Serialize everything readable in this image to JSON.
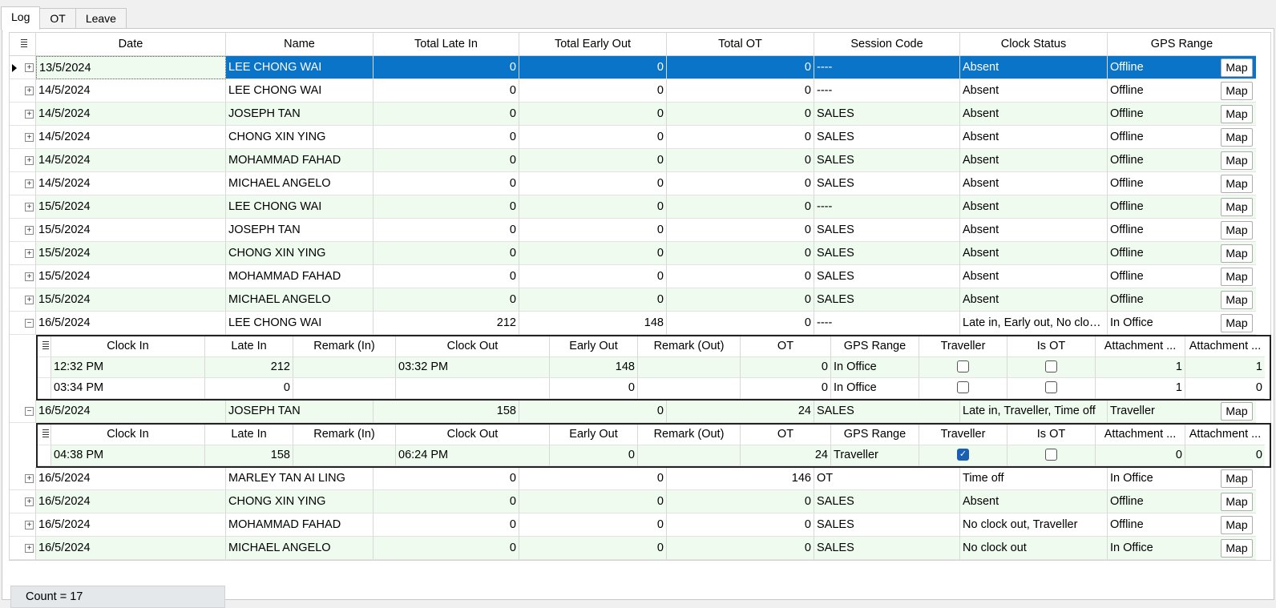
{
  "tabs": [
    "Log",
    "OT",
    "Leave"
  ],
  "columns": [
    "Date",
    "Name",
    "Total Late In",
    "Total Early Out",
    "Total OT",
    "Session Code",
    "Clock Status",
    "GPS Range"
  ],
  "map_label": "Map",
  "rows": [
    {
      "date": "13/5/2024",
      "name": "LEE CHONG WAI",
      "late": "0",
      "early": "0",
      "ot": "0",
      "session": "----",
      "status": "Absent",
      "gps": "Offline"
    },
    {
      "date": "14/5/2024",
      "name": "LEE CHONG WAI",
      "late": "0",
      "early": "0",
      "ot": "0",
      "session": "----",
      "status": "Absent",
      "gps": "Offline"
    },
    {
      "date": "14/5/2024",
      "name": "JOSEPH TAN",
      "late": "0",
      "early": "0",
      "ot": "0",
      "session": "SALES",
      "status": "Absent",
      "gps": "Offline"
    },
    {
      "date": "14/5/2024",
      "name": "CHONG XIN YING",
      "late": "0",
      "early": "0",
      "ot": "0",
      "session": "SALES",
      "status": "Absent",
      "gps": "Offline"
    },
    {
      "date": "14/5/2024",
      "name": "MOHAMMAD FAHAD",
      "late": "0",
      "early": "0",
      "ot": "0",
      "session": "SALES",
      "status": "Absent",
      "gps": "Offline"
    },
    {
      "date": "14/5/2024",
      "name": "MICHAEL ANGELO",
      "late": "0",
      "early": "0",
      "ot": "0",
      "session": "SALES",
      "status": "Absent",
      "gps": "Offline"
    },
    {
      "date": "15/5/2024",
      "name": "LEE CHONG WAI",
      "late": "0",
      "early": "0",
      "ot": "0",
      "session": "----",
      "status": "Absent",
      "gps": "Offline"
    },
    {
      "date": "15/5/2024",
      "name": "JOSEPH TAN",
      "late": "0",
      "early": "0",
      "ot": "0",
      "session": "SALES",
      "status": "Absent",
      "gps": "Offline"
    },
    {
      "date": "15/5/2024",
      "name": "CHONG XIN YING",
      "late": "0",
      "early": "0",
      "ot": "0",
      "session": "SALES",
      "status": "Absent",
      "gps": "Offline"
    },
    {
      "date": "15/5/2024",
      "name": "MOHAMMAD FAHAD",
      "late": "0",
      "early": "0",
      "ot": "0",
      "session": "SALES",
      "status": "Absent",
      "gps": "Offline"
    },
    {
      "date": "15/5/2024",
      "name": "MICHAEL ANGELO",
      "late": "0",
      "early": "0",
      "ot": "0",
      "session": "SALES",
      "status": "Absent",
      "gps": "Offline"
    },
    {
      "date": "16/5/2024",
      "name": "LEE CHONG WAI",
      "late": "212",
      "early": "148",
      "ot": "0",
      "session": "----",
      "status": "Late in, Early out, No cloc...",
      "gps": "In Office"
    },
    {
      "date": "16/5/2024",
      "name": "JOSEPH TAN",
      "late": "158",
      "early": "0",
      "ot": "24",
      "session": "SALES",
      "status": "Late in, Traveller, Time off",
      "gps": "Traveller"
    },
    {
      "date": "16/5/2024",
      "name": "MARLEY TAN AI LING",
      "late": "0",
      "early": "0",
      "ot": "146",
      "session": "OT",
      "status": "Time off",
      "gps": "In Office"
    },
    {
      "date": "16/5/2024",
      "name": "CHONG XIN YING",
      "late": "0",
      "early": "0",
      "ot": "0",
      "session": "SALES",
      "status": "Absent",
      "gps": "Offline"
    },
    {
      "date": "16/5/2024",
      "name": "MOHAMMAD FAHAD",
      "late": "0",
      "early": "0",
      "ot": "0",
      "session": "SALES",
      "status": "No clock out, Traveller",
      "gps": "Offline"
    },
    {
      "date": "16/5/2024",
      "name": "MICHAEL ANGELO",
      "late": "0",
      "early": "0",
      "ot": "0",
      "session": "SALES",
      "status": "No clock out",
      "gps": "In Office"
    }
  ],
  "detail_columns": [
    "Clock In",
    "Late In",
    "Remark (In)",
    "Clock Out",
    "Early Out",
    "Remark (Out)",
    "OT",
    "GPS Range",
    "Traveller",
    "Is OT",
    "Attachment ...",
    "Attachment ..."
  ],
  "details": {
    "d11": [
      {
        "clock_in": "12:32 PM",
        "late_in": "212",
        "remark_in": "",
        "clock_out": "03:32 PM",
        "early_out": "148",
        "remark_out": "",
        "ot": "0",
        "gps": "In Office",
        "traveller": false,
        "is_ot": false,
        "att1": "1",
        "att2": "1"
      },
      {
        "clock_in": "03:34 PM",
        "late_in": "0",
        "remark_in": "",
        "clock_out": "",
        "early_out": "0",
        "remark_out": "",
        "ot": "0",
        "gps": "In Office",
        "traveller": false,
        "is_ot": false,
        "att1": "1",
        "att2": "0"
      }
    ],
    "d12": [
      {
        "clock_in": "04:38 PM",
        "late_in": "158",
        "remark_in": "",
        "clock_out": "06:24 PM",
        "early_out": "0",
        "remark_out": "",
        "ot": "24",
        "gps": "Traveller",
        "traveller": true,
        "is_ot": false,
        "att1": "0",
        "att2": "0"
      }
    ]
  },
  "footer": {
    "count_text": "Count = 17"
  },
  "colors": {
    "selection": "#0a74c9",
    "alt_row": "#eefbee",
    "checkbox_on": "#1a5fb4"
  }
}
